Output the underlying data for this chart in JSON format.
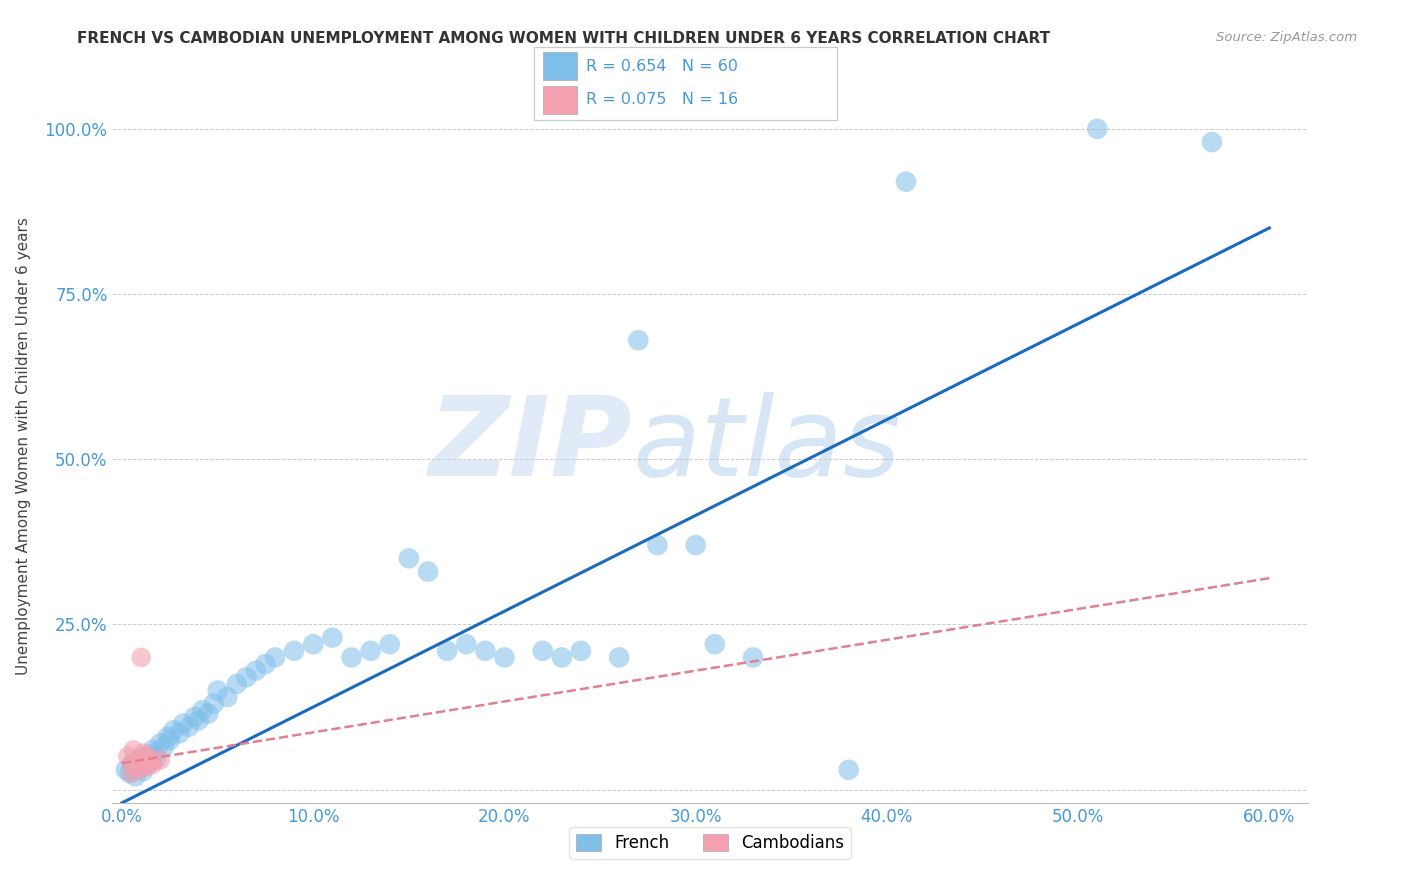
{
  "title": "FRENCH VS CAMBODIAN UNEMPLOYMENT AMONG WOMEN WITH CHILDREN UNDER 6 YEARS CORRELATION CHART",
  "source": "Source: ZipAtlas.com",
  "ylabel": "Unemployment Among Women with Children Under 6 years",
  "watermark_zip": "ZIP",
  "watermark_atlas": "atlas",
  "french_R": 0.654,
  "french_N": 60,
  "cambodian_R": 0.075,
  "cambodian_N": 16,
  "french_color": "#7fbfea",
  "cambodian_color": "#f4a0b0",
  "french_line_color": "#1a6bbf",
  "cambodian_line_color": "#e08090",
  "background_color": "#ffffff",
  "grid_color": "#cccccc",
  "axis_label_color": "#4499dd",
  "title_color": "#333333",
  "source_color": "#999999",
  "xlim": [
    -0.005,
    0.62
  ],
  "ylim": [
    -0.02,
    1.06
  ],
  "xticks": [
    0.0,
    0.1,
    0.2,
    0.3,
    0.4,
    0.5,
    0.6
  ],
  "yticks": [
    0.0,
    0.25,
    0.5,
    0.75,
    1.0
  ],
  "ytick_labels": [
    "",
    "25.0%",
    "50.0%",
    "75.0%",
    "100.0%"
  ],
  "xtick_labels": [
    "0.0%",
    "10.0%",
    "20.0%",
    "30.0%",
    "40.0%",
    "50.0%",
    "60.0%"
  ],
  "french_x": [
    0.002,
    0.004,
    0.005,
    0.006,
    0.007,
    0.008,
    0.009,
    0.01,
    0.011,
    0.012,
    0.013,
    0.015,
    0.016,
    0.017,
    0.018,
    0.02,
    0.022,
    0.024,
    0.025,
    0.027,
    0.03,
    0.032,
    0.035,
    0.038,
    0.04,
    0.042,
    0.045,
    0.048,
    0.05,
    0.055,
    0.06,
    0.065,
    0.07,
    0.075,
    0.08,
    0.09,
    0.1,
    0.11,
    0.12,
    0.13,
    0.14,
    0.15,
    0.16,
    0.17,
    0.18,
    0.19,
    0.2,
    0.22,
    0.23,
    0.24,
    0.26,
    0.27,
    0.28,
    0.3,
    0.31,
    0.33,
    0.38,
    0.41,
    0.51,
    0.57
  ],
  "french_y": [
    0.03,
    0.025,
    0.035,
    0.04,
    0.02,
    0.03,
    0.045,
    0.035,
    0.028,
    0.038,
    0.05,
    0.042,
    0.06,
    0.055,
    0.048,
    0.07,
    0.065,
    0.08,
    0.075,
    0.09,
    0.085,
    0.1,
    0.095,
    0.11,
    0.105,
    0.12,
    0.115,
    0.13,
    0.15,
    0.14,
    0.16,
    0.17,
    0.18,
    0.19,
    0.2,
    0.21,
    0.22,
    0.23,
    0.2,
    0.21,
    0.22,
    0.35,
    0.33,
    0.21,
    0.22,
    0.21,
    0.2,
    0.21,
    0.2,
    0.21,
    0.2,
    0.68,
    0.37,
    0.37,
    0.22,
    0.2,
    0.03,
    0.92,
    1.0,
    0.98
  ],
  "cambodian_x": [
    0.003,
    0.005,
    0.005,
    0.006,
    0.007,
    0.008,
    0.009,
    0.01,
    0.01,
    0.011,
    0.012,
    0.013,
    0.014,
    0.015,
    0.016,
    0.02
  ],
  "cambodian_y": [
    0.05,
    0.025,
    0.04,
    0.06,
    0.035,
    0.045,
    0.03,
    0.04,
    0.2,
    0.055,
    0.05,
    0.035,
    0.048,
    0.042,
    0.038,
    0.045
  ],
  "french_line_x": [
    0.0,
    0.6
  ],
  "french_line_y": [
    -0.02,
    0.85
  ],
  "cambodian_line_x": [
    0.0,
    0.6
  ],
  "cambodian_line_y": [
    0.04,
    0.32
  ]
}
